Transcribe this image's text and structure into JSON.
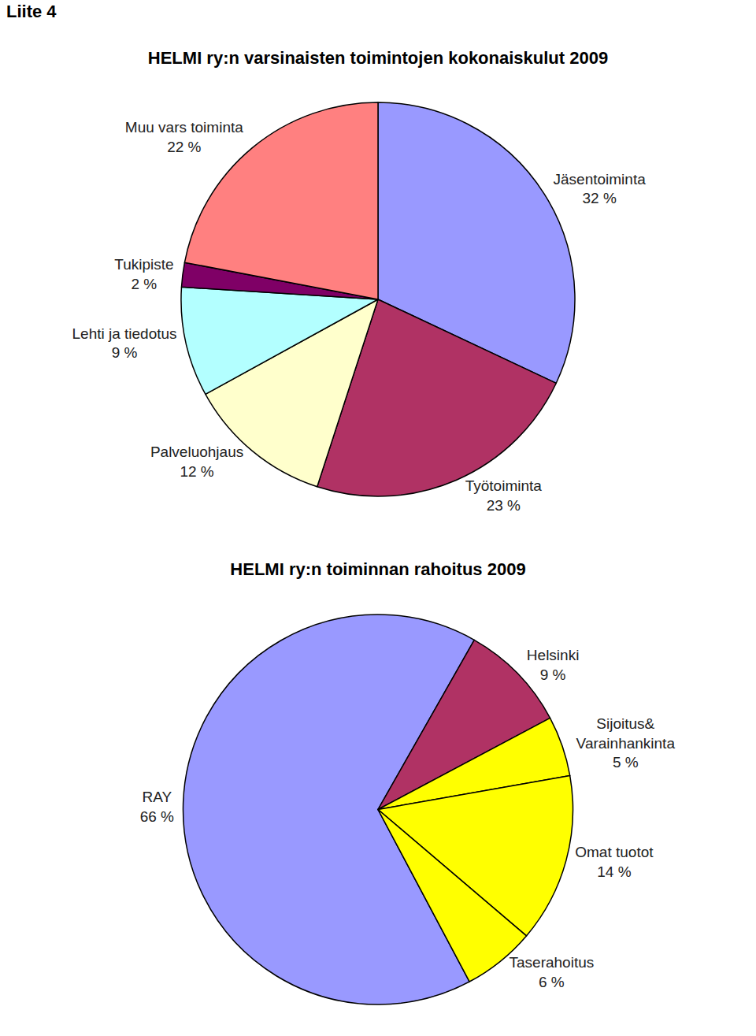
{
  "heading": "Liite 4",
  "chart_data": [
    {
      "type": "pie",
      "title": "HELMI ry:n varsinaisten toimintojen kokonaiskulut 2009",
      "categories": [
        "Jäsentoiminta",
        "Työtoiminta",
        "Palveluohjaus",
        "Lehti ja tiedotus",
        "Tukipiste",
        "Muu vars toiminta"
      ],
      "values": [
        32,
        23,
        12,
        9,
        2,
        22
      ],
      "value_labels": [
        "32 %",
        "23 %",
        "12 %",
        "9 %",
        "2 %",
        "22 %"
      ],
      "colors": [
        "#9999ff",
        "#b03264",
        "#ffffcc",
        "#b3ffff",
        "#7f0066",
        "#ff8080"
      ],
      "data_labels": true
    },
    {
      "type": "pie",
      "title": "HELMI ry:n toiminnan rahoitus 2009",
      "categories": [
        "RAY",
        "Helsinki",
        "Sijoitus&\nVarainhankinta",
        "Omat tuotot",
        "Taserahoitus"
      ],
      "values": [
        66,
        9,
        5,
        14,
        6
      ],
      "value_labels": [
        "66 %",
        "9 %",
        "5 %",
        "14 %",
        "6 %"
      ],
      "colors": [
        "#9999ff",
        "#b03264",
        "#ffff00",
        "#ffff00",
        "#ffff00"
      ],
      "data_labels": true
    }
  ]
}
